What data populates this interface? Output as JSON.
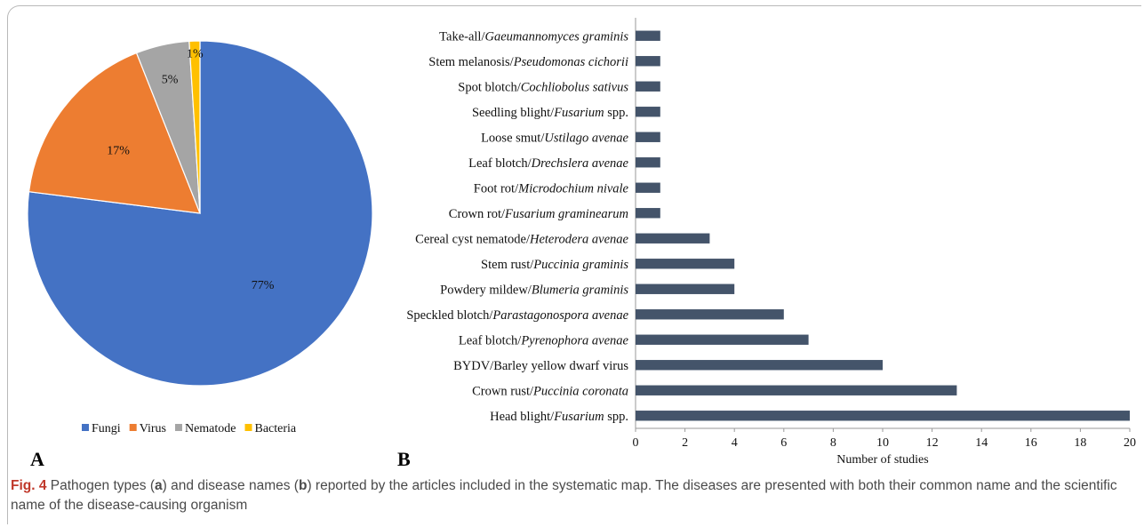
{
  "colors": {
    "fungi": "#4472C4",
    "virus": "#ED7D31",
    "nematode": "#A5A5A5",
    "bacteria": "#FFC000",
    "bar": "#44546A",
    "caption_label": "#c0392b"
  },
  "panel_labels": {
    "a": "A",
    "b": "B"
  },
  "chart_data": [
    {
      "type": "pie",
      "categories": [
        "Fungi",
        "Virus",
        "Nematode",
        "Bacteria"
      ],
      "values": [
        77,
        17,
        5,
        1
      ],
      "data_labels": [
        "77%",
        "17%",
        "5%",
        "1%"
      ],
      "legend_position": "bottom"
    },
    {
      "type": "bar",
      "orientation": "horizontal",
      "categories": [
        {
          "common": "Head blight/",
          "scientific": "Fusarium",
          "suffix": " spp."
        },
        {
          "common": "Crown rust/",
          "scientific": "Puccinia coronata",
          "suffix": ""
        },
        {
          "common": "BYDV/Barley yellow dwarf virus",
          "scientific": "",
          "suffix": ""
        },
        {
          "common": "Leaf blotch/",
          "scientific": "Pyrenophora avenae",
          "suffix": ""
        },
        {
          "common": "Speckled blotch/",
          "scientific": "Parastagonospora avenae",
          "suffix": ""
        },
        {
          "common": "Powdery mildew/",
          "scientific": "Blumeria graminis",
          "suffix": ""
        },
        {
          "common": "Stem rust/",
          "scientific": "Puccinia graminis",
          "suffix": ""
        },
        {
          "common": "Cereal cyst nematode/",
          "scientific": "Heterodera avenae",
          "suffix": ""
        },
        {
          "common": "Crown rot/",
          "scientific": "Fusarium graminearum",
          "suffix": ""
        },
        {
          "common": "Foot rot/",
          "scientific": "Microdochium nivale",
          "suffix": ""
        },
        {
          "common": "Leaf blotch/",
          "scientific": "Drechslera avenae",
          "suffix": ""
        },
        {
          "common": "Loose smut/",
          "scientific": "Ustilago avenae",
          "suffix": ""
        },
        {
          "common": "Seedling blight/",
          "scientific": "Fusarium",
          "suffix": " spp."
        },
        {
          "common": "Spot blotch/",
          "scientific": "Cochliobolus sativus",
          "suffix": ""
        },
        {
          "common": "Stem melanosis/",
          "scientific": "Pseudomonas cichorii",
          "suffix": ""
        },
        {
          "common": "Take-all/",
          "scientific": "Gaeumannomyces graminis",
          "suffix": ""
        }
      ],
      "values": [
        20,
        13,
        10,
        7,
        6,
        4,
        4,
        3,
        1,
        1,
        1,
        1,
        1,
        1,
        1,
        1
      ],
      "xlabel": "Number of studies",
      "xlim": [
        0,
        20
      ],
      "xticks": [
        "0",
        "2",
        "4",
        "6",
        "8",
        "10",
        "12",
        "14",
        "16",
        "18",
        "20"
      ]
    }
  ],
  "caption": {
    "label": "Fig. 4",
    "segments": [
      {
        "text": "  Pathogen types (",
        "bold": false
      },
      {
        "text": "a",
        "bold": true
      },
      {
        "text": ") and disease names (",
        "bold": false
      },
      {
        "text": "b",
        "bold": true
      },
      {
        "text": ") reported by the articles included in the systematic map. The diseases are presented with both their common name and the scientific name of the disease-causing organism",
        "bold": false
      }
    ]
  }
}
